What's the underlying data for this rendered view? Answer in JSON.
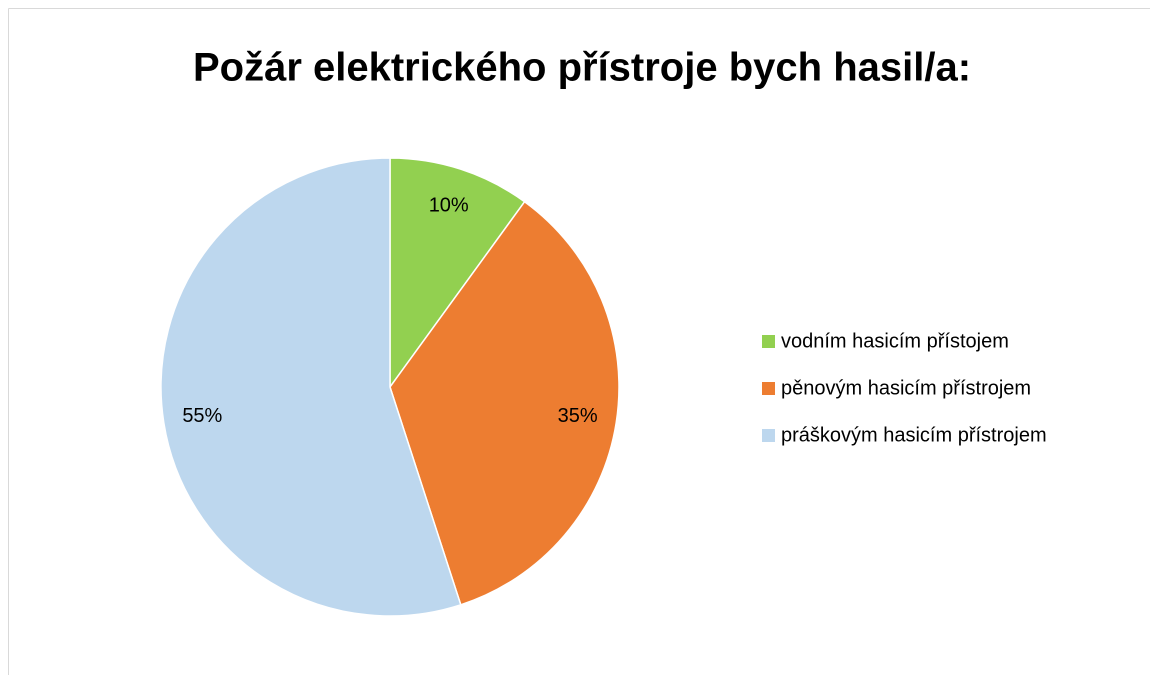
{
  "chart_data": {
    "type": "pie",
    "title": "Požár elektrického přístroje bych hasil/a:",
    "categories": [
      "vodním hasicím přístojem",
      "pěnovým hasicím přístrojem",
      "práškovým hasicím přístrojem"
    ],
    "values": [
      10,
      35,
      55
    ],
    "value_labels": [
      "10%",
      "35%",
      "55%"
    ],
    "colors": [
      "#92d050",
      "#ed7d31",
      "#bdd7ee"
    ],
    "legend": "right"
  }
}
